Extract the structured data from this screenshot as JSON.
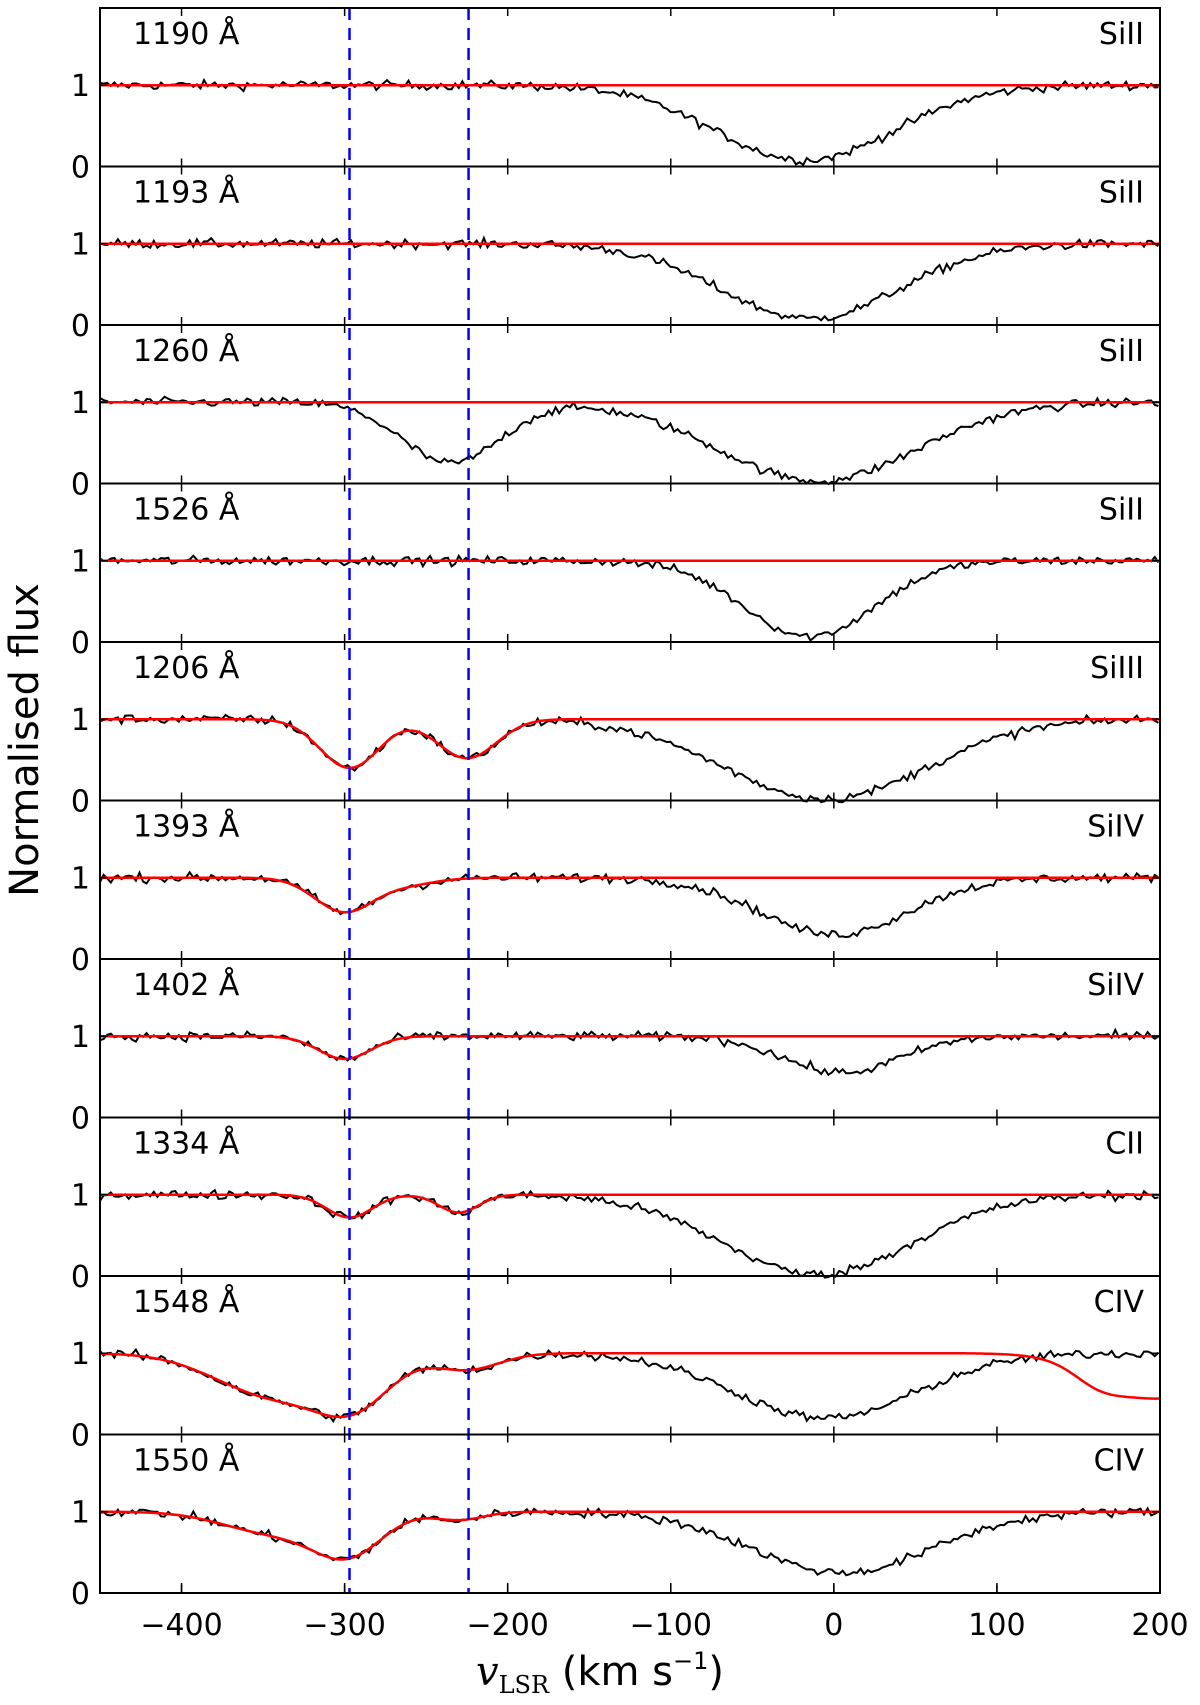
{
  "chart_data": {
    "type": "line",
    "ylabel": "Normalised flux",
    "xlabel_var": "v",
    "xlabel_sub": "LSR",
    "xlabel_unit": " (km s",
    "xlabel_exp": "−1",
    "xlabel_close": ")",
    "xlim": [
      -450,
      200
    ],
    "ylim_panel": [
      0,
      1.95
    ],
    "xticks": [
      -400,
      -300,
      -200,
      -100,
      0,
      100,
      200
    ],
    "xtick_labels": [
      "−400",
      "−300",
      "−200",
      "−100",
      "0",
      "100",
      "200"
    ],
    "yticks": [
      0,
      1
    ],
    "ytick_labels": [
      "0",
      "1"
    ],
    "vlines": [
      -297,
      -224
    ],
    "colors": {
      "data": "#000000",
      "model": "#ff0000",
      "vline": "#0000ff"
    },
    "panels": [
      {
        "wavelength": "1190 Å",
        "ion": "SiII",
        "absorptions": [
          [
            -18,
            55,
            0.92
          ]
        ],
        "model_components": []
      },
      {
        "wavelength": "1193 Å",
        "ion": "SiII",
        "absorptions": [
          [
            -15,
            55,
            0.92
          ]
        ],
        "model_components": []
      },
      {
        "wavelength": "1260 Å",
        "ion": "SiII",
        "absorptions": [
          [
            -10,
            60,
            0.97
          ],
          [
            -235,
            30,
            0.75
          ]
        ],
        "model_components": []
      },
      {
        "wavelength": "1526 Å",
        "ion": "SiII",
        "absorptions": [
          [
            -15,
            40,
            0.93
          ]
        ],
        "model_components": []
      },
      {
        "wavelength": "1206 Å",
        "ion": "SiIII",
        "absorptions": [
          [
            -5,
            62,
            0.98
          ],
          [
            -297,
            18,
            0.6
          ],
          [
            -225,
            18,
            0.48
          ]
        ],
        "model_components": [
          [
            -297,
            18,
            0.6
          ],
          [
            -225,
            18,
            0.48
          ]
        ]
      },
      {
        "wavelength": "1393 Å",
        "ion": "SiIV",
        "absorptions": [
          [
            0,
            45,
            0.7
          ],
          [
            -300,
            18,
            0.42
          ],
          [
            -262,
            18,
            0.08
          ]
        ],
        "model_components": [
          [
            -300,
            18,
            0.42
          ],
          [
            -262,
            18,
            0.08
          ]
        ]
      },
      {
        "wavelength": "1402 Å",
        "ion": "SiIV",
        "absorptions": [
          [
            5,
            35,
            0.45
          ],
          [
            -300,
            16,
            0.28
          ]
        ],
        "model_components": [
          [
            -300,
            16,
            0.28
          ]
        ]
      },
      {
        "wavelength": "1334 Å",
        "ion": "CII",
        "absorptions": [
          [
            -10,
            58,
            0.98
          ],
          [
            -297,
            14,
            0.28
          ],
          [
            -230,
            12,
            0.22
          ]
        ],
        "model_components": [
          [
            -297,
            14,
            0.28
          ],
          [
            -230,
            12,
            0.22
          ]
        ]
      },
      {
        "wavelength": "1548 Å",
        "ion": "CIV",
        "absorptions": [
          [
            -5,
            55,
            0.8
          ],
          [
            -300,
            25,
            0.72
          ],
          [
            -345,
            35,
            0.5
          ],
          [
            -225,
            20,
            0.2
          ]
        ],
        "model_components": [
          [
            -300,
            25,
            0.72
          ],
          [
            -345,
            35,
            0.5
          ],
          [
            -225,
            20,
            0.2
          ],
          [
            200,
            35,
            0.55
          ],
          [
            165,
            15,
            0.22
          ]
        ]
      },
      {
        "wavelength": "1550 Å",
        "ion": "CIV",
        "absorptions": [
          [
            5,
            55,
            0.75
          ],
          [
            -300,
            22,
            0.55
          ],
          [
            -345,
            30,
            0.25
          ],
          [
            -230,
            15,
            0.1
          ]
        ],
        "model_components": [
          [
            -300,
            22,
            0.55
          ],
          [
            -345,
            30,
            0.25
          ],
          [
            -230,
            15,
            0.1
          ]
        ]
      }
    ]
  }
}
